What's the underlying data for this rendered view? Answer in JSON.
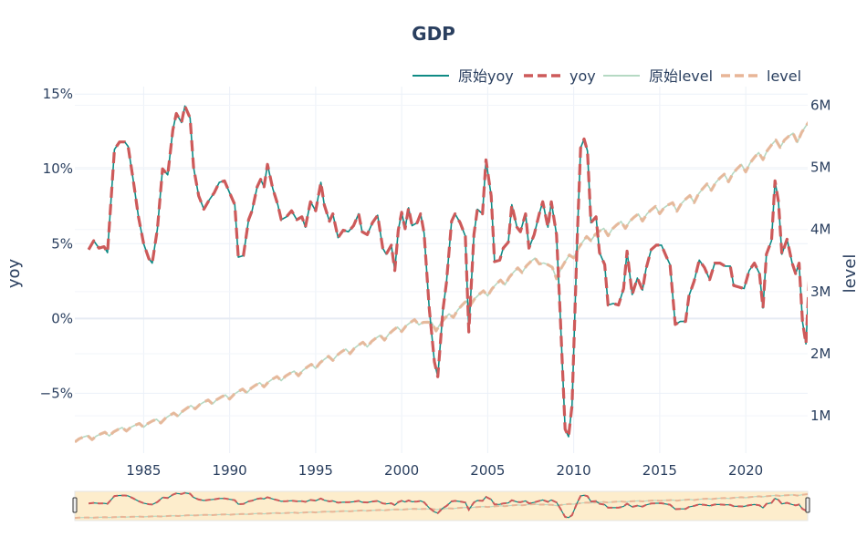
{
  "chart_data": {
    "type": "line",
    "title": "GDP",
    "y_left_label": "yoy",
    "y_right_label": "level",
    "xlim": [
      1981.0,
      2023.6
    ],
    "y_left_lim": [
      -9.0,
      15.5
    ],
    "y_right_lim": [
      0.4,
      6.3
    ],
    "x_ticks": [
      1985,
      1990,
      1995,
      2000,
      2005,
      2010,
      2015,
      2020
    ],
    "y_left_ticks": [
      {
        "value": 15,
        "label": "15%"
      },
      {
        "value": 10,
        "label": "10%"
      },
      {
        "value": 5,
        "label": "5%"
      },
      {
        "value": 0,
        "label": "0%"
      },
      {
        "value": -5,
        "label": "−5%"
      }
    ],
    "y_right_ticks": [
      {
        "value": 6,
        "label": "6M"
      },
      {
        "value": 5,
        "label": "5M"
      },
      {
        "value": 4,
        "label": "4M"
      },
      {
        "value": 3,
        "label": "3M"
      },
      {
        "value": 2,
        "label": "2M"
      },
      {
        "value": 1,
        "label": "1M"
      }
    ],
    "legend_position": "top-right",
    "has_range_slider": true,
    "yoy_anchors": [
      [
        1981.8,
        4.6
      ],
      [
        1982.1,
        5.2
      ],
      [
        1982.4,
        4.7
      ],
      [
        1982.7,
        4.8
      ],
      [
        1982.9,
        4.4
      ],
      [
        1983.3,
        11.3
      ],
      [
        1983.6,
        11.8
      ],
      [
        1983.9,
        11.8
      ],
      [
        1984.1,
        11.5
      ],
      [
        1984.4,
        9.2
      ],
      [
        1984.7,
        6.8
      ],
      [
        1985.0,
        5.0
      ],
      [
        1985.3,
        4.0
      ],
      [
        1985.5,
        3.7
      ],
      [
        1985.8,
        6.0
      ],
      [
        1986.1,
        10.0
      ],
      [
        1986.4,
        9.6
      ],
      [
        1986.7,
        12.6
      ],
      [
        1986.9,
        13.7
      ],
      [
        1987.2,
        13.1
      ],
      [
        1987.4,
        14.2
      ],
      [
        1987.7,
        13.4
      ],
      [
        1987.9,
        10.1
      ],
      [
        1988.2,
        8.2
      ],
      [
        1988.5,
        7.3
      ],
      [
        1988.8,
        7.9
      ],
      [
        1989.1,
        8.4
      ],
      [
        1989.4,
        9.1
      ],
      [
        1989.7,
        9.2
      ],
      [
        1990.0,
        8.4
      ],
      [
        1990.3,
        7.6
      ],
      [
        1990.5,
        4.1
      ],
      [
        1990.8,
        4.2
      ],
      [
        1991.1,
        6.6
      ],
      [
        1991.3,
        7.2
      ],
      [
        1991.6,
        8.8
      ],
      [
        1991.8,
        9.3
      ],
      [
        1992.0,
        8.8
      ],
      [
        1992.2,
        10.3
      ],
      [
        1992.5,
        8.7
      ],
      [
        1992.8,
        7.6
      ],
      [
        1993.0,
        6.6
      ],
      [
        1993.3,
        6.8
      ],
      [
        1993.6,
        7.2
      ],
      [
        1993.9,
        6.6
      ],
      [
        1994.2,
        6.8
      ],
      [
        1994.4,
        6.1
      ],
      [
        1994.7,
        7.8
      ],
      [
        1995.0,
        7.2
      ],
      [
        1995.3,
        9.1
      ],
      [
        1995.5,
        7.6
      ],
      [
        1995.8,
        6.5
      ],
      [
        1996.0,
        7.0
      ],
      [
        1996.3,
        5.4
      ],
      [
        1996.6,
        5.9
      ],
      [
        1996.9,
        5.8
      ],
      [
        1997.2,
        6.2
      ],
      [
        1997.5,
        7.0
      ],
      [
        1997.7,
        5.8
      ],
      [
        1998.0,
        5.6
      ],
      [
        1998.3,
        6.4
      ],
      [
        1998.6,
        6.9
      ],
      [
        1998.9,
        4.7
      ],
      [
        1999.1,
        4.3
      ],
      [
        1999.4,
        4.9
      ],
      [
        1999.6,
        3.2
      ],
      [
        1999.8,
        5.9
      ],
      [
        2000.0,
        7.1
      ],
      [
        2000.2,
        6.0
      ],
      [
        2000.4,
        7.4
      ],
      [
        2000.6,
        6.2
      ],
      [
        2000.9,
        6.4
      ],
      [
        2001.1,
        7.0
      ],
      [
        2001.3,
        5.7
      ],
      [
        2001.6,
        0.7
      ],
      [
        2001.9,
        -2.9
      ],
      [
        2002.1,
        -3.9
      ],
      [
        2002.4,
        0.6
      ],
      [
        2002.6,
        2.4
      ],
      [
        2002.9,
        6.5
      ],
      [
        2003.1,
        7.0
      ],
      [
        2003.4,
        6.4
      ],
      [
        2003.7,
        5.5
      ],
      [
        2003.9,
        -0.9
      ],
      [
        2004.2,
        5.6
      ],
      [
        2004.4,
        7.3
      ],
      [
        2004.7,
        7.0
      ],
      [
        2004.9,
        10.6
      ],
      [
        2005.2,
        8.2
      ],
      [
        2005.4,
        3.8
      ],
      [
        2005.7,
        3.9
      ],
      [
        2005.9,
        4.7
      ],
      [
        2006.2,
        5.1
      ],
      [
        2006.4,
        7.6
      ],
      [
        2006.7,
        6.1
      ],
      [
        2006.9,
        5.8
      ],
      [
        2007.2,
        7.0
      ],
      [
        2007.4,
        4.7
      ],
      [
        2007.7,
        5.6
      ],
      [
        2008.0,
        7.0
      ],
      [
        2008.2,
        7.8
      ],
      [
        2008.5,
        6.1
      ],
      [
        2008.7,
        7.8
      ],
      [
        2009.0,
        5.6
      ],
      [
        2009.2,
        0.6
      ],
      [
        2009.5,
        -7.4
      ],
      [
        2009.7,
        -7.9
      ],
      [
        2009.9,
        -5.8
      ],
      [
        2010.2,
        5.2
      ],
      [
        2010.4,
        11.4
      ],
      [
        2010.6,
        12.0
      ],
      [
        2010.8,
        11.2
      ],
      [
        2011.0,
        6.4
      ],
      [
        2011.3,
        6.8
      ],
      [
        2011.5,
        4.4
      ],
      [
        2011.8,
        3.6
      ],
      [
        2012.0,
        0.9
      ],
      [
        2012.3,
        1.0
      ],
      [
        2012.6,
        0.9
      ],
      [
        2012.9,
        2.0
      ],
      [
        2013.1,
        4.5
      ],
      [
        2013.4,
        1.6
      ],
      [
        2013.7,
        2.7
      ],
      [
        2014.0,
        1.9
      ],
      [
        2014.2,
        3.3
      ],
      [
        2014.5,
        4.6
      ],
      [
        2014.8,
        4.9
      ],
      [
        2015.1,
        4.9
      ],
      [
        2015.4,
        4.1
      ],
      [
        2015.6,
        3.6
      ],
      [
        2015.9,
        -0.4
      ],
      [
        2016.2,
        -0.2
      ],
      [
        2016.5,
        -0.2
      ],
      [
        2016.7,
        1.5
      ],
      [
        2017.0,
        2.5
      ],
      [
        2017.3,
        3.9
      ],
      [
        2017.6,
        3.4
      ],
      [
        2017.9,
        2.6
      ],
      [
        2018.2,
        3.7
      ],
      [
        2018.5,
        3.7
      ],
      [
        2018.8,
        3.5
      ],
      [
        2019.1,
        3.5
      ],
      [
        2019.3,
        2.2
      ],
      [
        2019.6,
        2.1
      ],
      [
        2019.9,
        2.0
      ],
      [
        2020.2,
        3.2
      ],
      [
        2020.5,
        3.7
      ],
      [
        2020.8,
        3.0
      ],
      [
        2021.0,
        0.7
      ],
      [
        2021.2,
        4.3
      ],
      [
        2021.5,
        5.2
      ],
      [
        2021.7,
        9.2
      ],
      [
        2021.9,
        7.8
      ],
      [
        2022.1,
        4.3
      ],
      [
        2022.4,
        5.3
      ],
      [
        2022.7,
        3.7
      ],
      [
        2022.9,
        3.0
      ],
      [
        2023.1,
        3.7
      ],
      [
        2023.3,
        -0.2
      ],
      [
        2023.5,
        -1.7
      ],
      [
        2023.7,
        2.9
      ],
      [
        2023.9,
        2.4
      ],
      [
        2024.2,
        4.7
      ]
    ],
    "level_anchors": [
      [
        1981.0,
        0.62
      ],
      [
        1982.0,
        0.66
      ],
      [
        1983.0,
        0.72
      ],
      [
        1984.0,
        0.8
      ],
      [
        1985.0,
        0.86
      ],
      [
        1986.0,
        0.93
      ],
      [
        1987.0,
        1.04
      ],
      [
        1988.0,
        1.16
      ],
      [
        1989.0,
        1.24
      ],
      [
        1990.0,
        1.32
      ],
      [
        1991.0,
        1.42
      ],
      [
        1992.0,
        1.52
      ],
      [
        1993.0,
        1.62
      ],
      [
        1994.0,
        1.7
      ],
      [
        1995.0,
        1.82
      ],
      [
        1996.0,
        1.95
      ],
      [
        1997.0,
        2.06
      ],
      [
        1998.0,
        2.17
      ],
      [
        1999.0,
        2.28
      ],
      [
        2000.0,
        2.42
      ],
      [
        2001.0,
        2.53
      ],
      [
        2002.0,
        2.43
      ],
      [
        2003.0,
        2.65
      ],
      [
        2004.0,
        2.85
      ],
      [
        2005.0,
        3.0
      ],
      [
        2006.0,
        3.18
      ],
      [
        2007.0,
        3.38
      ],
      [
        2008.0,
        3.52
      ],
      [
        2009.0,
        3.28
      ],
      [
        2010.0,
        3.62
      ],
      [
        2011.0,
        3.9
      ],
      [
        2012.0,
        3.98
      ],
      [
        2013.0,
        4.1
      ],
      [
        2014.0,
        4.22
      ],
      [
        2015.0,
        4.34
      ],
      [
        2016.0,
        4.38
      ],
      [
        2017.0,
        4.52
      ],
      [
        2018.0,
        4.72
      ],
      [
        2019.0,
        4.86
      ],
      [
        2020.0,
        5.02
      ],
      [
        2021.0,
        5.22
      ],
      [
        2022.0,
        5.42
      ],
      [
        2023.0,
        5.5
      ],
      [
        2024.0,
        5.75
      ],
      [
        2024.3,
        5.9
      ]
    ],
    "series": [
      {
        "name": "原始yoy",
        "color": "#0f8b85",
        "dash": "solid",
        "axis": "left"
      },
      {
        "name": "yoy",
        "color": "#cd5a5a",
        "dash": "dash",
        "axis": "left"
      },
      {
        "name": "原始level",
        "color": "#b5d9c3",
        "dash": "solid",
        "axis": "right"
      },
      {
        "name": "level",
        "color": "#e8b597",
        "dash": "dash",
        "axis": "right"
      }
    ]
  }
}
